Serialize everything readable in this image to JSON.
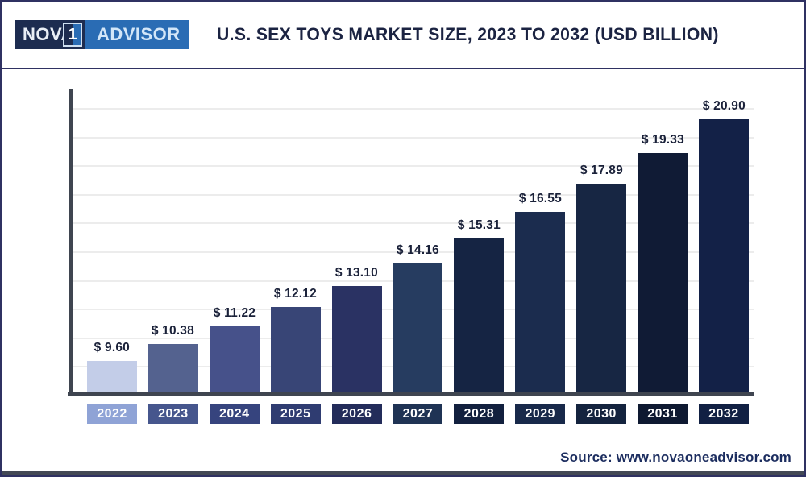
{
  "header": {
    "logo": {
      "part_nova": "NOVA",
      "part_one": "1",
      "part_advisor": "ADVISOR"
    },
    "title": "U.S. SEX TOYS MARKET SIZE, 2023 TO 2032 (USD BILLION)"
  },
  "chart_data": {
    "type": "bar",
    "title": "U.S. Sex Toys Market Size, 2023 to 2032 (USD Billion)",
    "unit": "USD Billion",
    "categories": [
      "2022",
      "2023",
      "2024",
      "2025",
      "2026",
      "2027",
      "2028",
      "2029",
      "2030",
      "2031",
      "2032"
    ],
    "values": [
      9.6,
      10.38,
      11.22,
      12.12,
      13.1,
      14.16,
      15.31,
      16.55,
      17.89,
      19.33,
      20.9
    ],
    "value_labels": [
      "$ 9.60",
      "$ 10.38",
      "$ 11.22",
      "$ 12.12",
      "$ 13.10",
      "$ 14.16",
      "$ 15.31",
      "$ 16.55",
      "$ 17.89",
      "$ 19.33",
      "$ 20.90"
    ],
    "bar_colors": [
      "#c3cde8",
      "#54628f",
      "#46518a",
      "#384576",
      "#2a3263",
      "#263c60",
      "#152443",
      "#1b2c4e",
      "#172643",
      "#101b35",
      "#132147"
    ],
    "x_label_box_colors": [
      "#8fa3d6",
      "#46568d",
      "#36447e",
      "#2f3c71",
      "#232c5a",
      "#1f3354",
      "#12203e",
      "#18294a",
      "#14233e",
      "#0e1931",
      "#112043"
    ],
    "xlabel": "",
    "ylabel": "",
    "ylim": [
      8.13,
      22.25
    ],
    "grid": "horizontal",
    "gridline_count": 10,
    "legend": "none",
    "axis_color": "#3f4550",
    "value_label_color": "#1a2139"
  },
  "footer": {
    "source": "Source: www.novaoneadvisor.com"
  },
  "colors": {
    "brand_navy": "#1d2c50",
    "brand_blue": "#2a6cb4",
    "border_navy": "#2f3162",
    "gridline": "#ececec",
    "title_navy": "#1b2342"
  }
}
